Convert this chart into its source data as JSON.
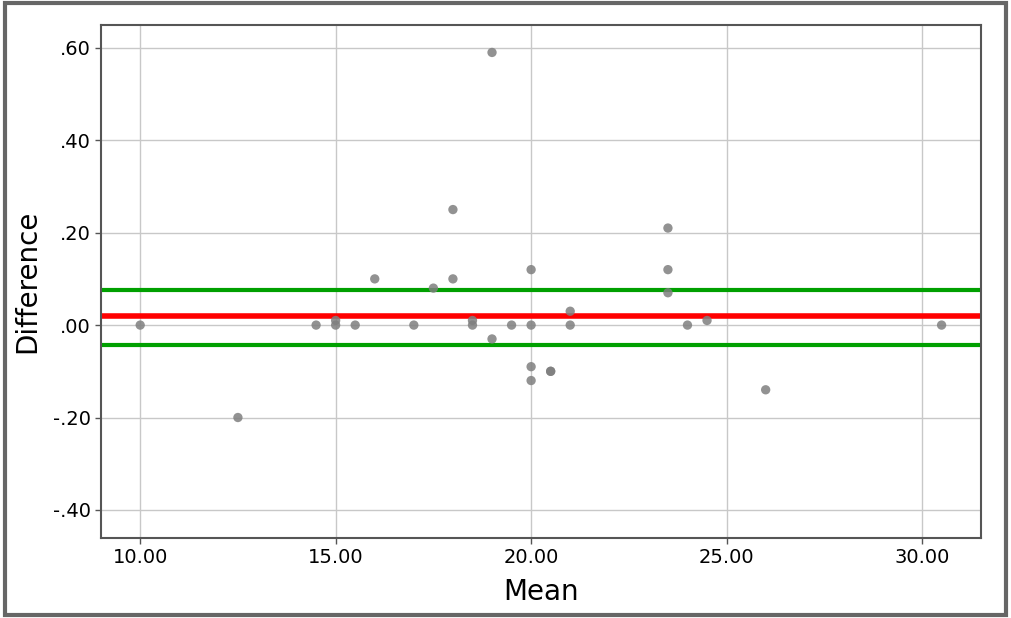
{
  "scatter_x": [
    10.0,
    12.5,
    14.5,
    15.0,
    15.0,
    15.5,
    16.0,
    17.0,
    17.5,
    18.0,
    18.0,
    18.5,
    18.5,
    19.0,
    19.0,
    19.5,
    20.0,
    20.0,
    20.0,
    20.0,
    20.5,
    20.5,
    21.0,
    21.0,
    23.5,
    23.5,
    23.5,
    24.0,
    24.5,
    26.0,
    30.5
  ],
  "scatter_y": [
    0.0,
    -0.2,
    0.0,
    0.0,
    0.01,
    0.0,
    0.1,
    0.0,
    0.08,
    0.25,
    0.1,
    0.01,
    0.0,
    0.59,
    -0.03,
    0.0,
    0.12,
    0.0,
    -0.09,
    -0.12,
    -0.1,
    -0.1,
    0.03,
    0.0,
    0.21,
    0.12,
    0.07,
    0.0,
    0.01,
    -0.14,
    0.0
  ],
  "bias": 0.02,
  "upper_loa": 0.075,
  "lower_loa": -0.043,
  "xlim": [
    9.0,
    31.5
  ],
  "ylim": [
    -0.46,
    0.65
  ],
  "xticks": [
    10.0,
    15.0,
    20.0,
    25.0,
    30.0
  ],
  "yticks": [
    -0.4,
    -0.2,
    0.0,
    0.2,
    0.4,
    0.6
  ],
  "xlabel": "Mean",
  "ylabel": "Difference",
  "scatter_color": "#7f7f7f",
  "scatter_size": 45,
  "bias_color": "#ff0000",
  "loa_color": "#00a000",
  "bias_linewidth": 4.0,
  "loa_linewidth": 3.0,
  "grid_color": "#c8c8c8",
  "plot_bg_color": "#ffffff",
  "fig_bg_color": "#ffffff",
  "xlabel_fontsize": 20,
  "ylabel_fontsize": 20,
  "tick_fontsize": 14,
  "border_color": "#555555",
  "border_linewidth": 1.5
}
